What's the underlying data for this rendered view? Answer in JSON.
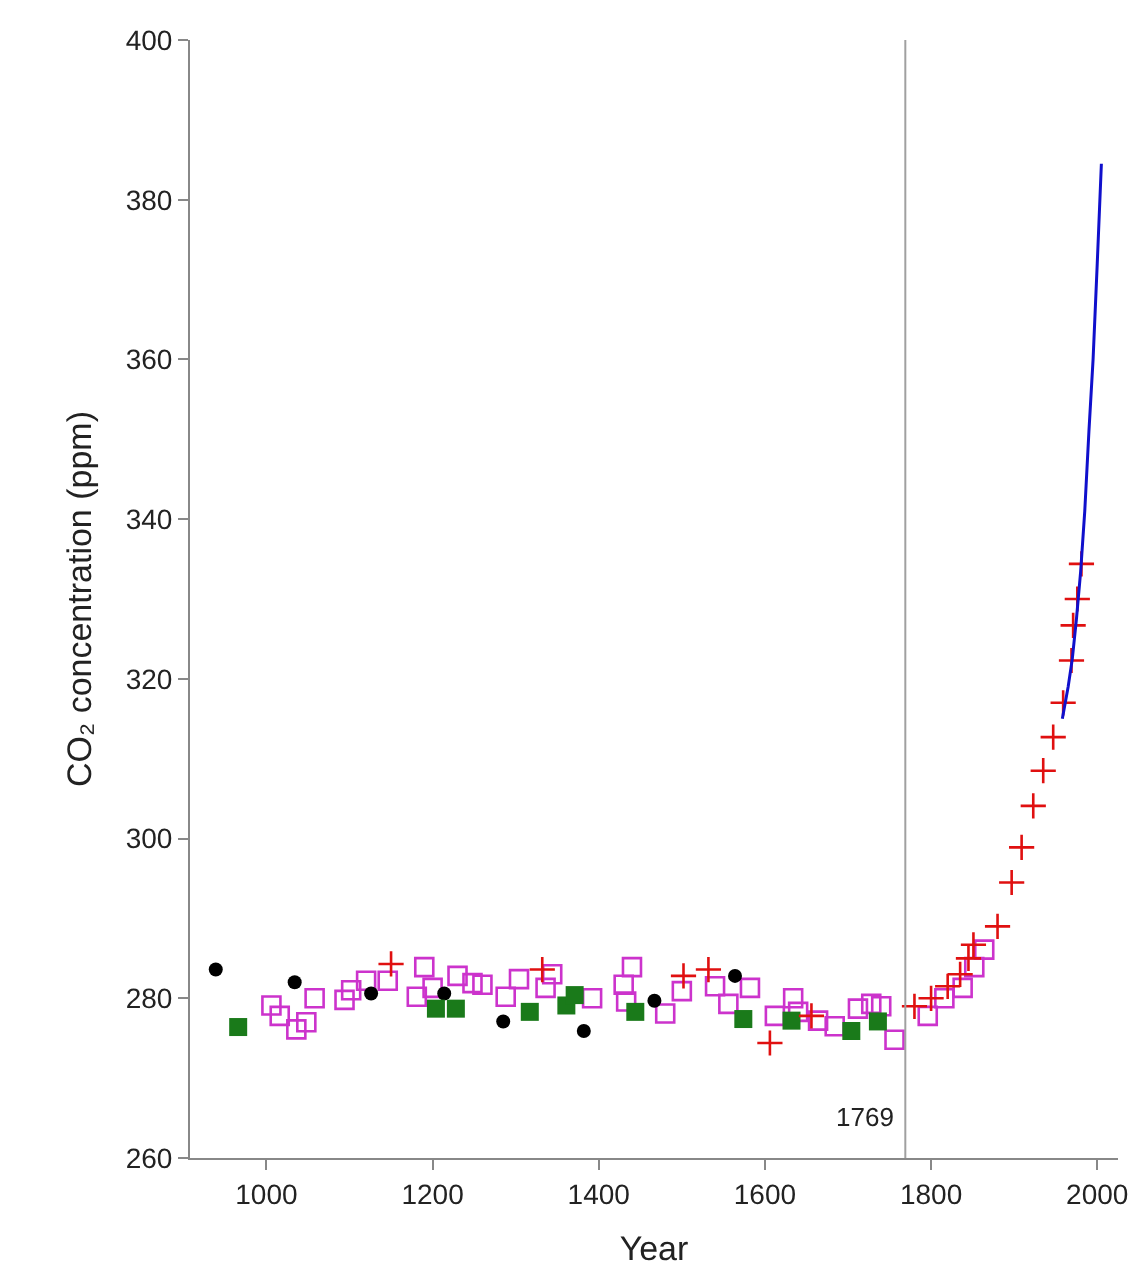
{
  "chart_data": {
    "type": "scatter",
    "xlabel": "Year",
    "ylabel": "CO₂ concentration (ppm)",
    "xlim": [
      908,
      2025
    ],
    "xticks": [
      1000,
      1200,
      1400,
      1600,
      1800,
      2000
    ],
    "ylim": [
      260,
      400
    ],
    "yticks": [
      260,
      280,
      300,
      320,
      340,
      360,
      380,
      400
    ],
    "grid": false,
    "legend": false,
    "ref_lines": [
      {
        "axis": "x",
        "value": 1769,
        "label": "1769",
        "color": "#a0a0a0"
      }
    ],
    "series": [
      {
        "color": "#cc33cc",
        "marker": "square-open",
        "x": [
          1006,
          1016,
          1036,
          1048,
          1058,
          1094,
          1102,
          1120,
          1146,
          1181,
          1190,
          1200,
          1230,
          1248,
          1260,
          1288,
          1304,
          1336,
          1344,
          1392,
          1433,
          1440,
          1430,
          1438,
          1480,
          1500,
          1528,
          1540,
          1556,
          1582,
          1612,
          1634,
          1640,
          1664,
          1684,
          1712,
          1728,
          1740,
          1756,
          1782,
          1796,
          1816,
          1838,
          1852,
          1864
        ],
        "values": [
          279.1,
          277.8,
          276.1,
          277.0,
          280.0,
          279.8,
          281.0,
          282.2,
          282.2,
          280.2,
          283.9,
          281.3,
          282.8,
          281.9,
          281.7,
          280.2,
          282.4,
          281.3,
          283.0,
          280.0,
          279.6,
          283.9,
          281.7,
          null,
          278.1,
          280.9,
          null,
          281.5,
          279.3,
          281.3,
          277.8,
          280.0,
          278.3,
          277.2,
          276.5,
          278.7,
          279.3,
          279.0,
          274.8,
          null,
          277.8,
          280.0,
          281.3,
          283.9,
          286.1
        ]
      },
      {
        "color": "#000000",
        "marker": "circle",
        "x": [
          939,
          1034,
          1126,
          1214,
          1285,
          1382,
          1467,
          1564
        ],
        "values": [
          283.6,
          282.0,
          280.6,
          280.6,
          277.1,
          275.9,
          279.7,
          282.8
        ]
      },
      {
        "color": "#1a7a1a",
        "marker": "square",
        "x": [
          966,
          1204,
          1228,
          1317,
          1361,
          1371,
          1444,
          1574,
          1632,
          1704,
          1736
        ],
        "values": [
          276.4,
          278.7,
          278.7,
          278.3,
          279.1,
          280.4,
          278.3,
          277.4,
          277.2,
          275.9,
          277.1
        ]
      },
      {
        "color": "#e01010",
        "marker": "cross",
        "x": [
          1150,
          1332,
          1502,
          1532,
          1606,
          1656,
          1780,
          1800,
          1820,
          1835,
          1845,
          1851,
          1880,
          1897,
          1909,
          1923,
          1935,
          1947,
          1959,
          1969,
          1971,
          1976,
          1981
        ],
        "values": [
          284.3,
          283.6,
          282.8,
          283.6,
          274.4,
          277.8,
          279.0,
          280.0,
          281.5,
          283.0,
          285.0,
          286.7,
          289.0,
          294.5,
          298.9,
          304.1,
          308.5,
          312.7,
          317.0,
          322.3,
          326.7,
          330.0,
          334.4
        ]
      },
      {
        "type": "line",
        "color": "#1010cc",
        "marker": "none",
        "x": [
          1958,
          1965,
          1970,
          1975,
          1980,
          1985,
          1990,
          1995,
          2000,
          2005
        ],
        "values": [
          315.0,
          319.0,
          322.5,
          327.5,
          333.4,
          341.0,
          351.0,
          360.0,
          372.0,
          384.5
        ]
      }
    ]
  }
}
